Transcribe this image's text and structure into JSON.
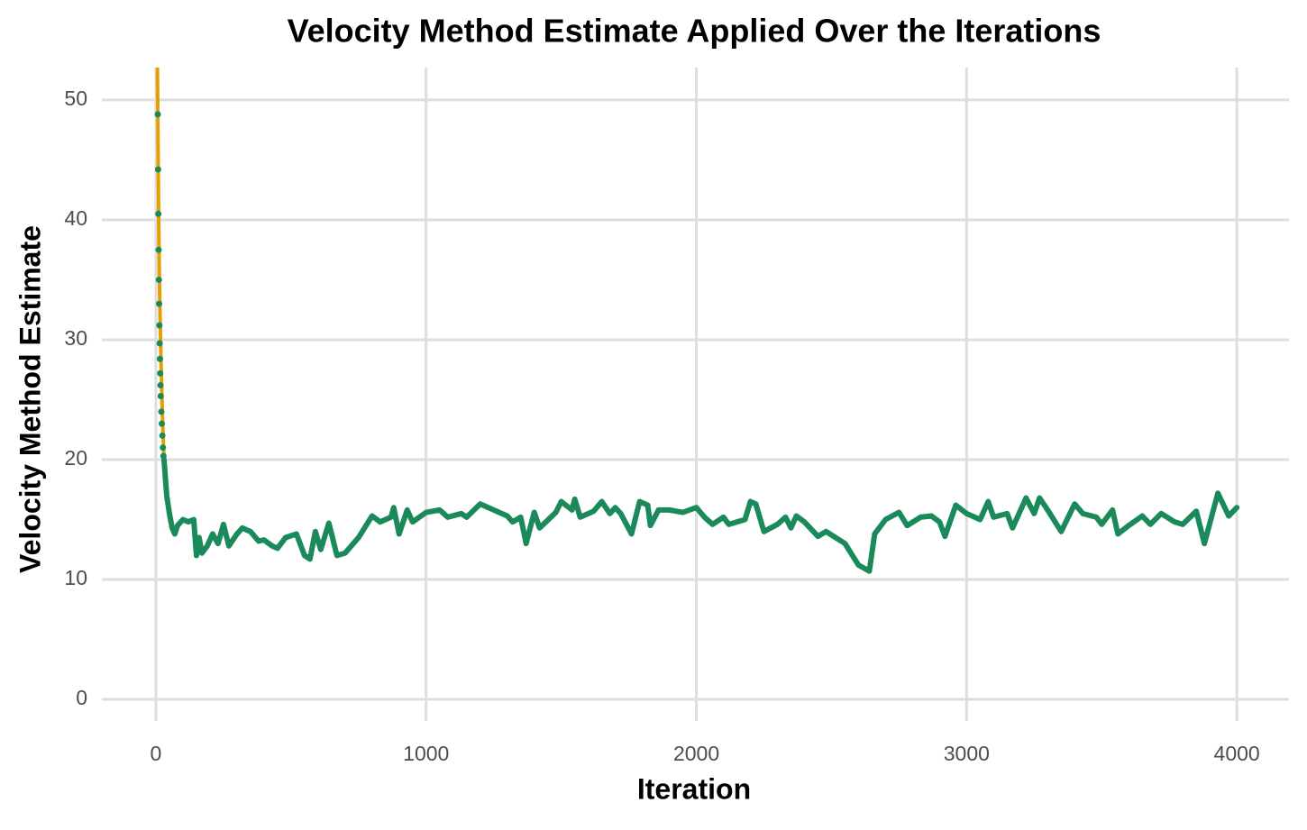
{
  "chart_data": {
    "type": "line",
    "title": "Velocity Method Estimate Applied Over the Iterations",
    "x_label": "Iteration",
    "y_label": "Velocity Method Estimate",
    "xlim": [
      -200,
      4193
    ],
    "ylim": [
      -1.8,
      52.7
    ],
    "xticks": [
      0,
      1000,
      2000,
      3000,
      4000
    ],
    "yticks": [
      0,
      10,
      20,
      30,
      40,
      50
    ],
    "grid": true,
    "series": [
      {
        "color": "#e69f00",
        "width": 4,
        "marker": false,
        "x": [
          3,
          7,
          10,
          13,
          16,
          20,
          25,
          30
        ],
        "values": [
          60,
          48.8,
          40.5,
          35,
          31.2,
          27.2,
          23,
          20
        ]
      },
      {
        "color": "#1b8a5a",
        "width": 6,
        "marker": false,
        "x": [
          30,
          40,
          50,
          60,
          70,
          80,
          100,
          120,
          140,
          150,
          160,
          170,
          190,
          210,
          230,
          250,
          270,
          300,
          320,
          350,
          380,
          400,
          430,
          450,
          480,
          520,
          550,
          570,
          590,
          610,
          640,
          670,
          700,
          750,
          800,
          830,
          870,
          880,
          900,
          930,
          950,
          1000,
          1050,
          1080,
          1130,
          1150,
          1200,
          1250,
          1300,
          1320,
          1350,
          1370,
          1400,
          1420,
          1480,
          1500,
          1540,
          1550,
          1570,
          1620,
          1650,
          1680,
          1700,
          1720,
          1760,
          1790,
          1820,
          1830,
          1860,
          1900,
          1950,
          2000,
          2030,
          2060,
          2100,
          2120,
          2180,
          2200,
          2220,
          2250,
          2300,
          2330,
          2350,
          2370,
          2400,
          2450,
          2480,
          2550,
          2600,
          2640,
          2660,
          2700,
          2750,
          2780,
          2830,
          2870,
          2900,
          2920,
          2960,
          3000,
          3050,
          3080,
          3100,
          3150,
          3170,
          3220,
          3250,
          3270,
          3300,
          3350,
          3400,
          3430,
          3480,
          3500,
          3540,
          3560,
          3600,
          3650,
          3680,
          3720,
          3770,
          3800,
          3850,
          3880,
          3930,
          3970,
          4000
        ],
        "values": [
          20,
          17,
          15.5,
          14.3,
          13.8,
          14.5,
          15,
          14.8,
          15,
          12,
          13.5,
          12.2,
          12.8,
          13.8,
          13,
          14.6,
          12.8,
          13.8,
          14.3,
          14,
          13.2,
          13.3,
          12.8,
          12.6,
          13.5,
          13.8,
          12,
          11.7,
          14,
          12.5,
          14.7,
          12,
          12.2,
          13.5,
          15.3,
          14.8,
          15.2,
          16,
          13.8,
          15.8,
          14.8,
          15.6,
          15.8,
          15.2,
          15.5,
          15.2,
          16.3,
          15.8,
          15.3,
          14.8,
          15.2,
          13,
          15.6,
          14.3,
          15.6,
          16.5,
          15.8,
          16.7,
          15.2,
          15.7,
          16.5,
          15.5,
          16,
          15.5,
          13.8,
          16.5,
          16.2,
          14.5,
          15.8,
          15.8,
          15.6,
          16,
          15.2,
          14.6,
          15.2,
          14.6,
          15,
          16.5,
          16.3,
          14,
          14.6,
          15.2,
          14.3,
          15.3,
          14.8,
          13.6,
          14,
          13,
          11.2,
          10.7,
          13.8,
          15,
          15.6,
          14.5,
          15.2,
          15.3,
          14.8,
          13.6,
          16.2,
          15.5,
          15,
          16.5,
          15.2,
          15.5,
          14.3,
          16.8,
          15.5,
          16.8,
          15.8,
          14,
          16.3,
          15.5,
          15.2,
          14.6,
          15.8,
          13.8,
          14.5,
          15.3,
          14.6,
          15.5,
          14.8,
          14.6,
          15.7,
          13,
          17.2,
          15.3,
          16
        ]
      },
      {
        "color": "#1b8a5a",
        "width": 0,
        "marker": true,
        "x": [
          7,
          8,
          9,
          10,
          11,
          12,
          13,
          14,
          15,
          16,
          17,
          18,
          20,
          22,
          24,
          26,
          28
        ],
        "values": [
          48.8,
          44.2,
          40.5,
          37.5,
          35,
          33,
          31.2,
          29.7,
          28.4,
          27.2,
          26.2,
          25.3,
          24,
          23,
          22,
          21,
          20.3
        ]
      }
    ]
  }
}
